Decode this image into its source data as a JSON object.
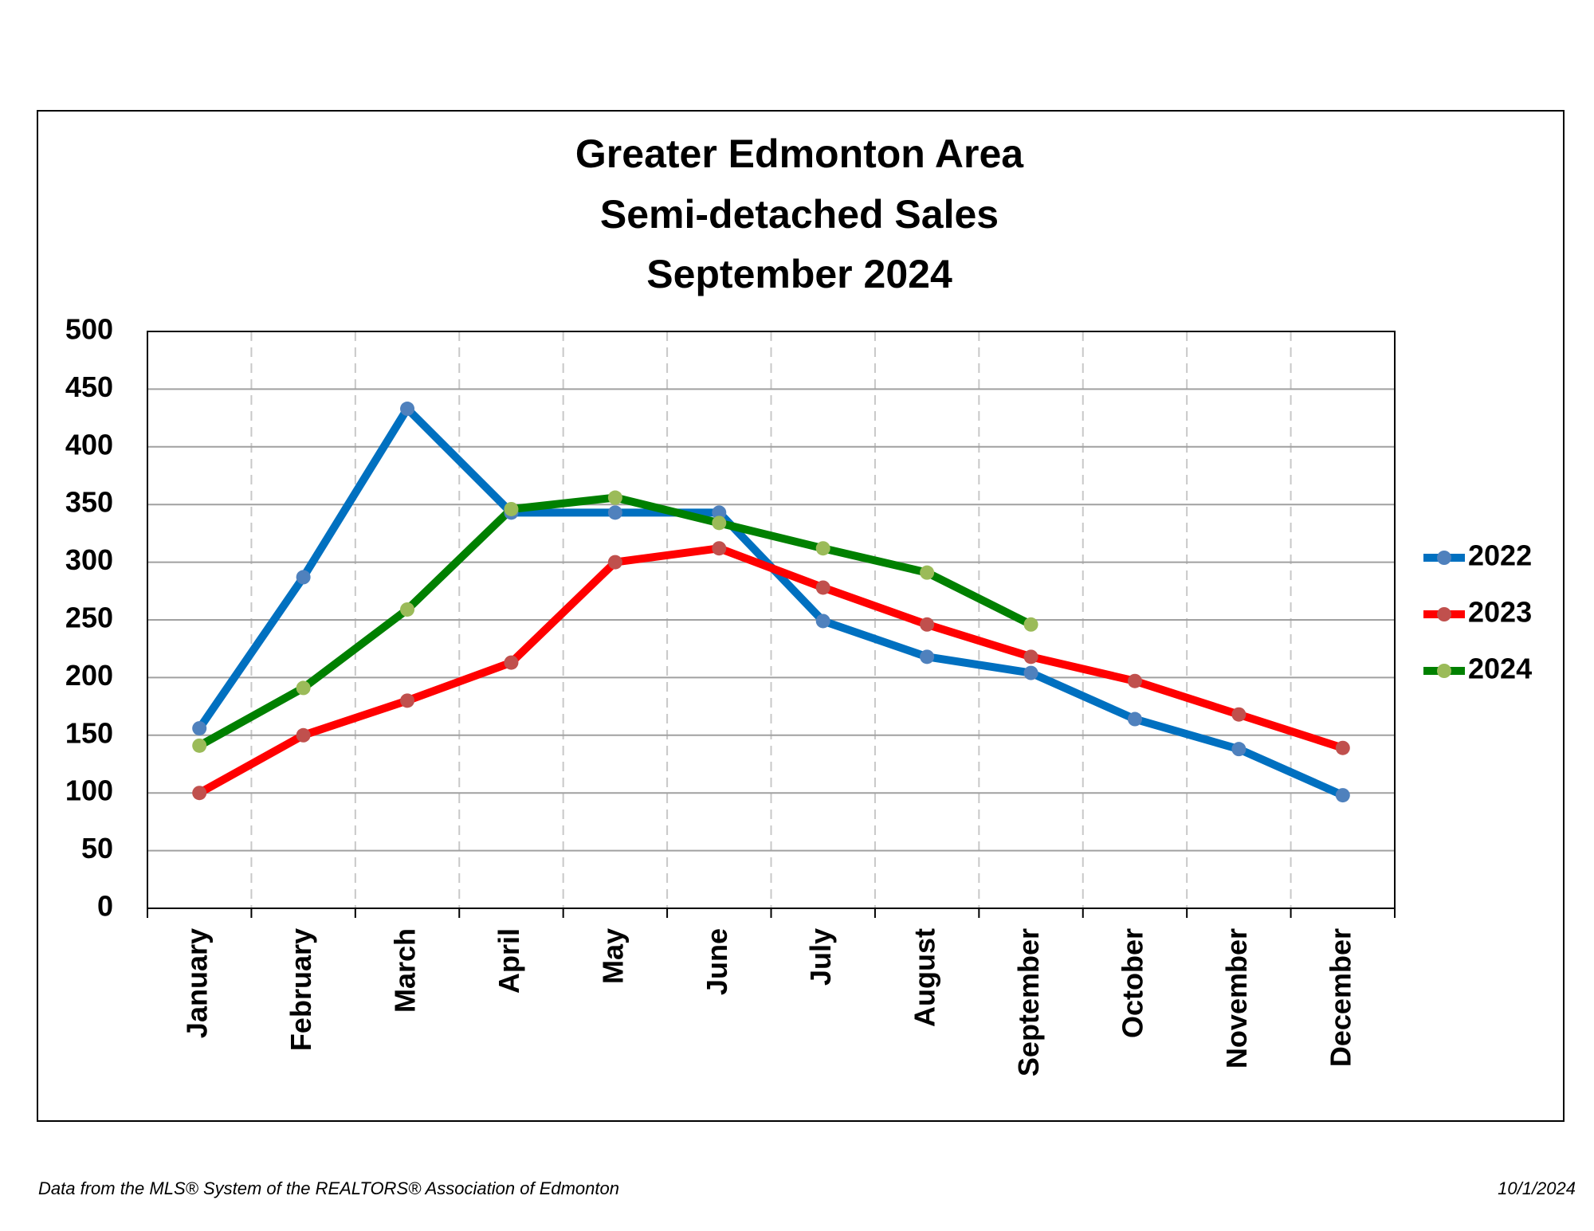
{
  "chart_data": {
    "type": "line",
    "title": [
      "Greater Edmonton Area",
      "Semi-detached Sales",
      "September 2024"
    ],
    "categories": [
      "January",
      "February",
      "March",
      "April",
      "May",
      "June",
      "July",
      "August",
      "September",
      "October",
      "November",
      "December"
    ],
    "series": [
      {
        "name": "2022",
        "color": "#0070c0",
        "marker_color": "#4f81bd",
        "values": [
          156,
          287,
          433,
          343,
          343,
          343,
          249,
          218,
          204,
          164,
          138,
          98
        ]
      },
      {
        "name": "2023",
        "color": "#ff0000",
        "marker_color": "#c0504d",
        "values": [
          100,
          150,
          180,
          213,
          300,
          312,
          278,
          246,
          218,
          197,
          168,
          139
        ]
      },
      {
        "name": "2024",
        "color": "#008000",
        "marker_color": "#9bbb59",
        "values": [
          141,
          191,
          259,
          346,
          356,
          334,
          312,
          291,
          246,
          null,
          null,
          null
        ]
      }
    ],
    "ylim": [
      0,
      500
    ],
    "yticks": [
      0,
      50,
      100,
      150,
      200,
      250,
      300,
      350,
      400,
      450,
      500
    ],
    "grid": true,
    "legend": "right",
    "source": "Data from the MLS® System of the REALTORS® Association of Edmonton",
    "date": "10/1/2024"
  }
}
